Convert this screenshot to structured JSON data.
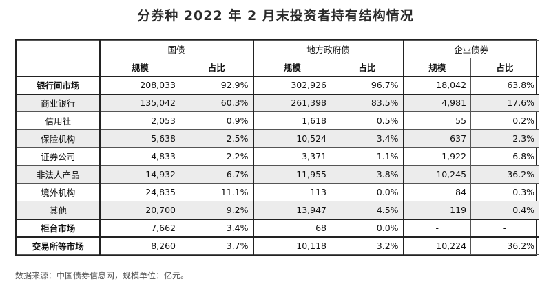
{
  "title": "分券种 2022 年 2 月末投资者持有结构情况",
  "groups": [
    "国债",
    "地方政府债",
    "企业债券"
  ],
  "sub_headers": [
    "规模",
    "占比",
    "规模",
    "占比",
    "规模",
    "占比"
  ],
  "rows": [
    {
      "label": "银行间市场",
      "bold": true,
      "values": [
        "208,033",
        "92.9%",
        "302,926",
        "96.7%",
        "18,042",
        "63.8%"
      ]
    },
    {
      "label": "商业银行",
      "bold": false,
      "values": [
        "135,042",
        "60.3%",
        "261,398",
        "83.5%",
        "4,981",
        "17.6%"
      ]
    },
    {
      "label": "信用社",
      "bold": false,
      "values": [
        "2,053",
        "0.9%",
        "1,618",
        "0.5%",
        "55",
        "0.2%"
      ]
    },
    {
      "label": "保险机构",
      "bold": false,
      "values": [
        "5,638",
        "2.5%",
        "10,524",
        "3.4%",
        "637",
        "2.3%"
      ]
    },
    {
      "label": "证券公司",
      "bold": false,
      "values": [
        "4,833",
        "2.2%",
        "3,371",
        "1.1%",
        "1,922",
        "6.8%"
      ]
    },
    {
      "label": "非法人产品",
      "bold": false,
      "values": [
        "14,932",
        "6.7%",
        "11,955",
        "3.8%",
        "10,245",
        "36.2%"
      ]
    },
    {
      "label": "境外机构",
      "bold": false,
      "values": [
        "24,835",
        "11.1%",
        "113",
        "0.0%",
        "84",
        "0.3%"
      ]
    },
    {
      "label": "其他",
      "bold": false,
      "values": [
        "20,700",
        "9.2%",
        "13,947",
        "4.5%",
        "119",
        "0.4%"
      ]
    },
    {
      "label": "柜台市场",
      "bold": true,
      "values": [
        "7,662",
        "3.4%",
        "68",
        "0.0%",
        "-",
        "-"
      ]
    },
    {
      "label": "交易所等市场",
      "bold": true,
      "values": [
        "8,260",
        "3.7%",
        "10,118",
        "3.2%",
        "10,224",
        "36.2%"
      ]
    }
  ],
  "source_note": "数据来源：中国债券信息网，规模单位：亿元。"
}
